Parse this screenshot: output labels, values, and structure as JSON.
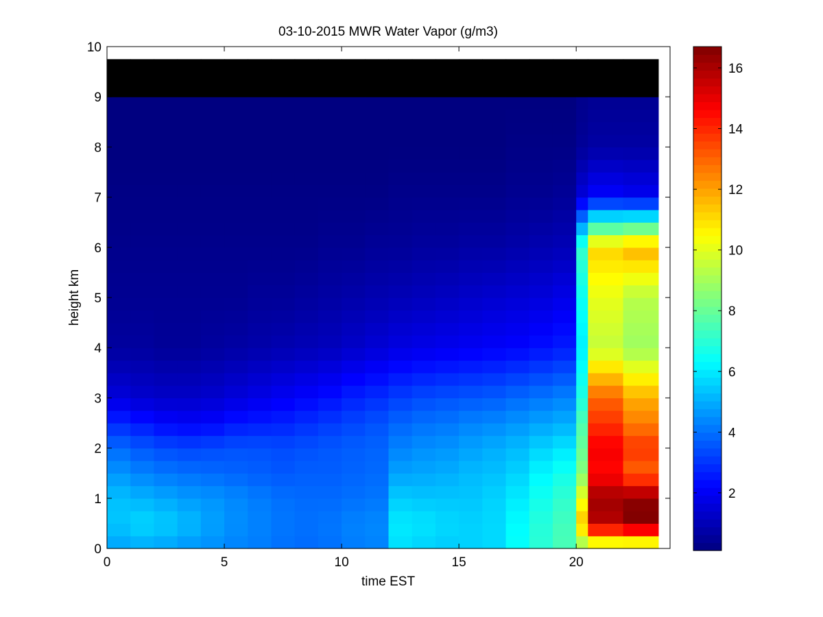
{
  "chart_data": {
    "type": "heatmap",
    "title": "03-10-2015 MWR Water Vapor (g/m3)",
    "xlabel": "time EST",
    "ylabel": "height km",
    "xlim": [
      0,
      24
    ],
    "ylim": [
      0,
      10
    ],
    "x_ticks": [
      "0",
      "5",
      "10",
      "15",
      "20"
    ],
    "y_ticks": [
      "0",
      "1",
      "2",
      "3",
      "4",
      "5",
      "6",
      "7",
      "8",
      "9",
      "10"
    ],
    "colorbar": {
      "colormap": "jet",
      "range": [
        0.1,
        16.7
      ],
      "ticks": [
        "2",
        "4",
        "6",
        "8",
        "10",
        "12",
        "14",
        "16"
      ]
    },
    "grid": false,
    "x": [
      0.5,
      1.5,
      2.5,
      3.5,
      4.5,
      5.5,
      6.5,
      7.5,
      8.5,
      9.5,
      10.5,
      11.5,
      12.5,
      13.5,
      14.5,
      15.5,
      16.5,
      17.5,
      18.5,
      19.5,
      20.5,
      21.5,
      22.5
    ],
    "x_edges": [
      0,
      1,
      2,
      3,
      4,
      5,
      6,
      7,
      8,
      9,
      10,
      11,
      12,
      13,
      14,
      15,
      16,
      17,
      18,
      19,
      20,
      20.5,
      22,
      23.5
    ],
    "height_levels_km": [
      0,
      0.5,
      1,
      1.5,
      2,
      2.5,
      3,
      4,
      5,
      6,
      7,
      8,
      9,
      9.75
    ],
    "values": [
      [
        4.8,
        5.4,
        5.3,
        4.6,
        3.9,
        2.8,
        1.6,
        0.6,
        0.4,
        0.3,
        0.2,
        0.1,
        0.1
      ],
      [
        4.9,
        5.7,
        5.1,
        4.3,
        3.6,
        2.5,
        1.4,
        0.6,
        0.4,
        0.3,
        0.2,
        0.1,
        0.1
      ],
      [
        4.8,
        5.5,
        4.9,
        4.1,
        3.4,
        2.2,
        1.3,
        0.5,
        0.4,
        0.3,
        0.2,
        0.1,
        0.1
      ],
      [
        4.6,
        5.2,
        4.7,
        4.0,
        3.3,
        2.1,
        1.3,
        0.5,
        0.4,
        0.3,
        0.2,
        0.1,
        0.1
      ],
      [
        4.5,
        4.8,
        4.6,
        3.9,
        3.4,
        2.2,
        1.4,
        0.6,
        0.4,
        0.3,
        0.2,
        0.1,
        0.1
      ],
      [
        4.3,
        4.5,
        4.4,
        3.8,
        3.5,
        2.5,
        1.6,
        0.7,
        0.4,
        0.3,
        0.2,
        0.1,
        0.1
      ],
      [
        4.2,
        4.3,
        4.2,
        3.7,
        3.5,
        2.6,
        1.8,
        0.8,
        0.5,
        0.3,
        0.2,
        0.1,
        0.1
      ],
      [
        4.0,
        4.1,
        4.0,
        3.6,
        3.4,
        2.7,
        2.0,
        0.9,
        0.5,
        0.3,
        0.2,
        0.1,
        0.1
      ],
      [
        3.9,
        4.0,
        3.9,
        3.7,
        3.5,
        2.9,
        2.2,
        1.0,
        0.6,
        0.3,
        0.2,
        0.1,
        0.1
      ],
      [
        4.0,
        4.1,
        3.9,
        3.7,
        3.6,
        3.1,
        2.4,
        1.1,
        0.7,
        0.4,
        0.2,
        0.1,
        0.1
      ],
      [
        4.2,
        4.3,
        4.0,
        3.8,
        3.7,
        3.3,
        2.7,
        1.3,
        0.8,
        0.4,
        0.2,
        0.1,
        0.1
      ],
      [
        4.3,
        4.4,
        4.1,
        3.9,
        3.8,
        3.5,
        2.9,
        1.5,
        0.9,
        0.5,
        0.2,
        0.1,
        0.1
      ],
      [
        5.8,
        6.0,
        5.5,
        4.8,
        4.3,
        3.8,
        3.2,
        1.7,
        1.0,
        0.5,
        0.3,
        0.1,
        0.1
      ],
      [
        5.6,
        5.9,
        5.4,
        4.9,
        4.5,
        4.0,
        3.4,
        1.8,
        1.1,
        0.6,
        0.3,
        0.1,
        0.1
      ],
      [
        5.5,
        5.7,
        5.4,
        5.0,
        4.6,
        4.1,
        3.5,
        1.9,
        1.2,
        0.6,
        0.3,
        0.1,
        0.1
      ],
      [
        5.6,
        5.6,
        5.4,
        5.2,
        4.8,
        4.3,
        3.6,
        2.0,
        1.3,
        0.7,
        0.3,
        0.1,
        0.1
      ],
      [
        5.7,
        5.7,
        5.6,
        5.3,
        5.0,
        4.4,
        3.7,
        2.1,
        1.4,
        0.7,
        0.3,
        0.1,
        0.1
      ],
      [
        6.4,
        6.3,
        6.0,
        5.6,
        5.2,
        4.6,
        3.9,
        2.2,
        1.5,
        0.8,
        0.4,
        0.2,
        0.1
      ],
      [
        7.0,
        6.9,
        6.6,
        6.2,
        5.6,
        4.8,
        4.1,
        2.4,
        1.6,
        0.9,
        0.4,
        0.2,
        0.1
      ],
      [
        7.5,
        7.4,
        7.1,
        6.6,
        5.9,
        5.0,
        4.3,
        2.6,
        1.8,
        1.0,
        0.5,
        0.2,
        0.1
      ],
      [
        8.5,
        11.5,
        10.2,
        8.5,
        8.0,
        7.6,
        6.8,
        6.1,
        6.5,
        7.2,
        1.6,
        0.5,
        0.3
      ],
      [
        8.8,
        15.8,
        16.2,
        14.5,
        14.8,
        13.8,
        13.0,
        9.5,
        10.1,
        11.2,
        2.2,
        0.7,
        0.4
      ],
      [
        8.6,
        16.7,
        16.5,
        13.0,
        13.8,
        12.6,
        11.8,
        8.9,
        9.3,
        11.8,
        2.0,
        0.7,
        0.4
      ]
    ]
  }
}
